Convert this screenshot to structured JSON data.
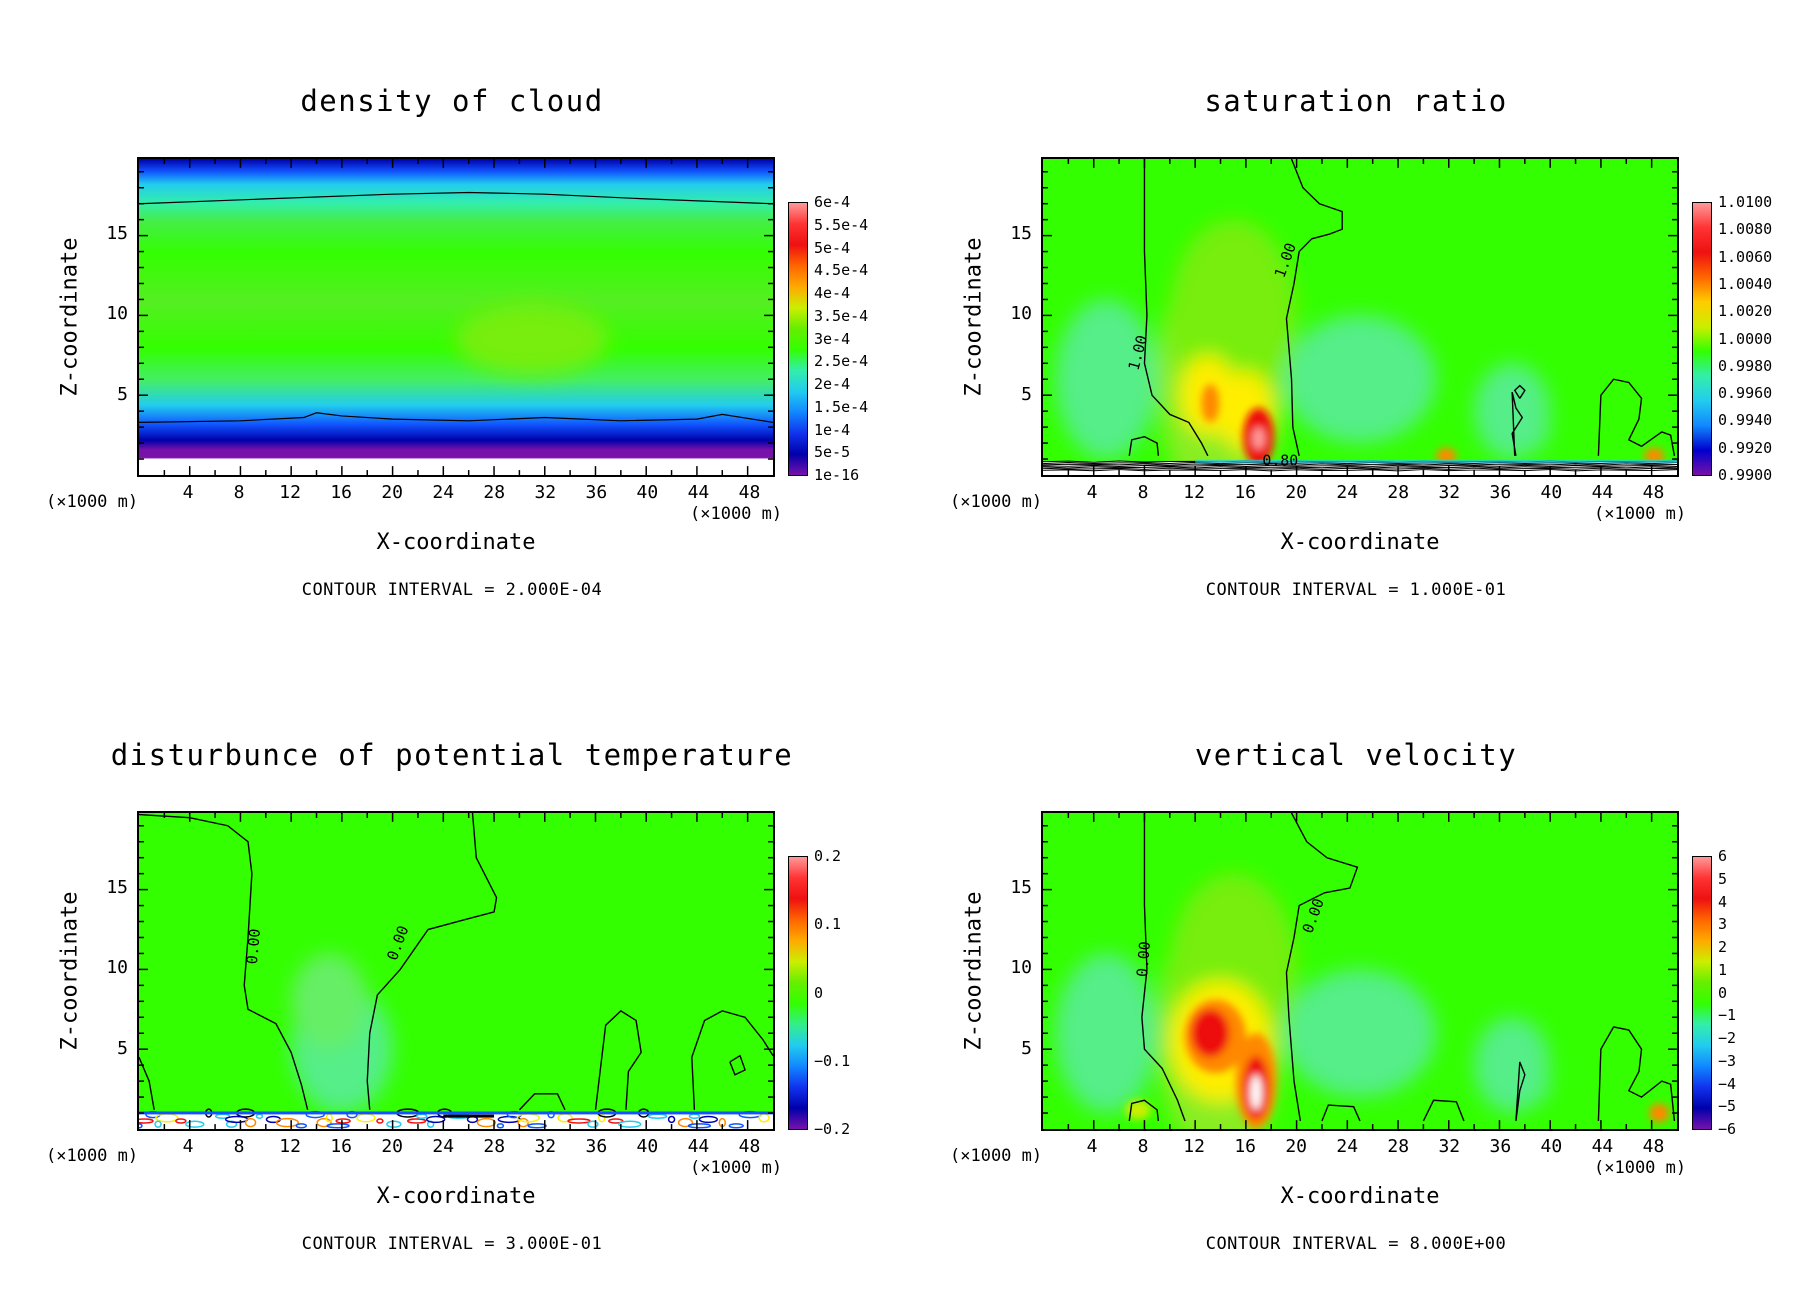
{
  "chart_data": [
    {
      "type": "heatmap",
      "title": "density of cloud",
      "xlabel": "X-coordinate",
      "ylabel": "Z-coordinate",
      "x_unit": "(×1000 m)",
      "xlim": [
        0,
        50
      ],
      "ylim": [
        0,
        19.8
      ],
      "x_ticks": [
        "4",
        "8",
        "12",
        "16",
        "20",
        "24",
        "28",
        "32",
        "36",
        "40",
        "44",
        "48"
      ],
      "y_ticks": [
        "5",
        "10",
        "15"
      ],
      "colorbar": [
        "6e-4",
        "5.5e-4",
        "5e-4",
        "4.5e-4",
        "4e-4",
        "3.5e-4",
        "3e-4",
        "2.5e-4",
        "2e-4",
        "1.5e-4",
        "1e-4",
        "5e-5",
        "1e-16"
      ],
      "contour_labels": [],
      "contour_interval": "CONTOUR INTERVAL = 2.000E-04",
      "field": "layered"
    },
    {
      "type": "heatmap",
      "title": "saturation ratio",
      "xlabel": "X-coordinate",
      "ylabel": "Z-coordinate",
      "x_unit": "(×1000 m)",
      "xlim": [
        0,
        50
      ],
      "ylim": [
        0,
        19.8
      ],
      "x_ticks": [
        "4",
        "8",
        "12",
        "16",
        "20",
        "24",
        "28",
        "32",
        "36",
        "40",
        "44",
        "48"
      ],
      "y_ticks": [
        "5",
        "10",
        "15"
      ],
      "colorbar": [
        "1.0100",
        "1.0080",
        "1.0060",
        "1.0040",
        "1.0020",
        "1.0000",
        "0.9980",
        "0.9960",
        "0.9940",
        "0.9920",
        "0.9900"
      ],
      "contour_labels": [
        "1.00",
        "1.00",
        "0.80"
      ],
      "contour_interval": "CONTOUR INTERVAL = 1.000E-01",
      "field": "plume"
    },
    {
      "type": "heatmap",
      "title": "disturbunce of potential temperature",
      "xlabel": "X-coordinate",
      "ylabel": "Z-coordinate",
      "x_unit": "(×1000 m)",
      "xlim": [
        0,
        50
      ],
      "ylim": [
        0,
        19.8
      ],
      "x_ticks": [
        "4",
        "8",
        "12",
        "16",
        "20",
        "24",
        "28",
        "32",
        "36",
        "40",
        "44",
        "48"
      ],
      "y_ticks": [
        "5",
        "10",
        "15"
      ],
      "colorbar": [
        "0.2",
        "0.1",
        "0",
        "−0.1",
        "−0.2"
      ],
      "contour_labels": [
        "0.00",
        "0.00"
      ],
      "contour_interval": "CONTOUR INTERVAL = 3.000E-01",
      "field": "theta"
    },
    {
      "type": "heatmap",
      "title": "vertical velocity",
      "xlabel": "X-coordinate",
      "ylabel": "Z-coordinate",
      "x_unit": "(×1000 m)",
      "xlim": [
        0,
        50
      ],
      "ylim": [
        0,
        19.8
      ],
      "x_ticks": [
        "4",
        "8",
        "12",
        "16",
        "20",
        "24",
        "28",
        "32",
        "36",
        "40",
        "44",
        "48"
      ],
      "y_ticks": [
        "5",
        "10",
        "15"
      ],
      "colorbar": [
        "6",
        "5",
        "4",
        "3",
        "2",
        "1",
        "0",
        "−1",
        "−2",
        "−3",
        "−4",
        "−5",
        "−6"
      ],
      "contour_labels": [
        "0.00",
        "0.00"
      ],
      "contour_interval": "CONTOUR INTERVAL = 8.000E+00",
      "field": "velocity"
    }
  ],
  "colors": {
    "background_green": "#33ff00",
    "light_green": "#66ee33",
    "cyan_green": "#33eeaa",
    "cyan": "#22ccee",
    "blue": "#1155ff",
    "navy": "#0000aa",
    "purple": "#7711aa",
    "yellow": "#ffee00",
    "orange": "#ff8800",
    "red": "#ee1111",
    "pink": "#ff9999"
  }
}
